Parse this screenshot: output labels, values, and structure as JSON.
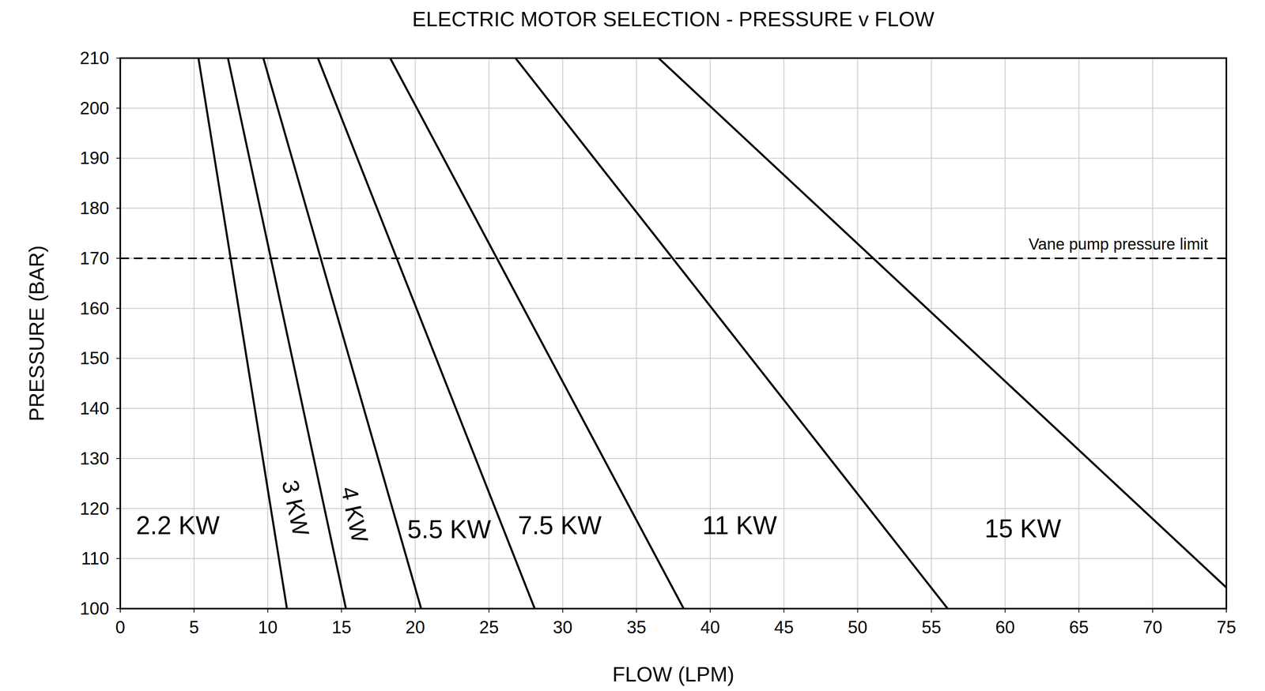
{
  "chart_data": {
    "type": "line",
    "title": "ELECTRIC MOTOR SELECTION - PRESSURE v FLOW",
    "x_label": "FLOW (LPM)",
    "y_label": "PRESSURE (BAR)",
    "xlim": [
      0,
      75
    ],
    "ylim": [
      100,
      210
    ],
    "xticks": [
      0,
      5,
      10,
      15,
      20,
      25,
      30,
      35,
      40,
      45,
      50,
      55,
      60,
      65,
      70,
      75
    ],
    "yticks": [
      100,
      110,
      120,
      130,
      140,
      150,
      160,
      170,
      180,
      190,
      200,
      210
    ],
    "grid": true,
    "series": [
      {
        "color": "#000000",
        "x": [
          5.3,
          11.3
        ],
        "values": [
          210,
          100
        ]
      },
      {
        "color": "#000000",
        "x": [
          7.3,
          15.3
        ],
        "values": [
          210,
          100
        ]
      },
      {
        "color": "#000000",
        "x": [
          9.7,
          20.4
        ],
        "values": [
          210,
          100
        ]
      },
      {
        "color": "#000000",
        "x": [
          13.4,
          28.1
        ],
        "values": [
          210,
          100
        ]
      },
      {
        "color": "#000000",
        "x": [
          18.3,
          38.2
        ],
        "values": [
          210,
          100
        ]
      },
      {
        "color": "#000000",
        "x": [
          26.8,
          56.1
        ],
        "values": [
          210,
          100
        ]
      },
      {
        "color": "#000000",
        "x": [
          36.5,
          75
        ],
        "values": [
          210,
          104.2
        ]
      }
    ],
    "reference_lines": [
      {
        "value": 170,
        "label": "Vane pump pressure limit",
        "line_style": "dashed",
        "color": "#000000"
      }
    ],
    "annotations": [
      {
        "text": "2.2 KW",
        "x": 3.9,
        "y": 116.6
      },
      {
        "text": "3 KW",
        "x": 11.9,
        "y": 120.1
      },
      {
        "text": "4 KW",
        "x": 15.9,
        "y": 118.8
      },
      {
        "text": "5.5 KW",
        "x": 22.3,
        "y": 115.8
      },
      {
        "text": "7.5 KW",
        "x": 29.8,
        "y": 116.6
      },
      {
        "text": "11 KW",
        "x": 42.0,
        "y": 116.6
      },
      {
        "text": "15 KW",
        "x": 61.2,
        "y": 116.0
      }
    ]
  }
}
